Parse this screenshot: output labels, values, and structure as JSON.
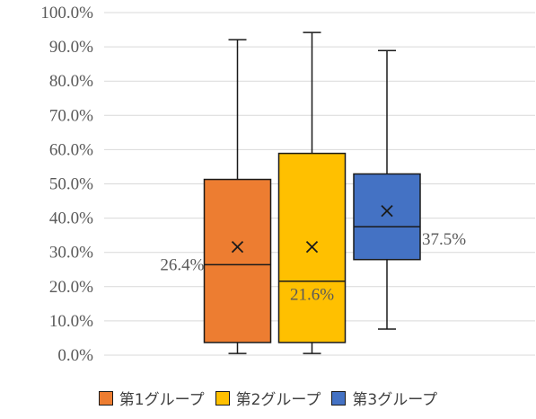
{
  "chart_data": {
    "type": "box",
    "ylim": [
      0,
      100
    ],
    "y_ticks": [
      "0.0%",
      "10.0%",
      "20.0%",
      "30.0%",
      "40.0%",
      "50.0%",
      "60.0%",
      "70.0%",
      "80.0%",
      "90.0%",
      "100.0%"
    ],
    "grid": true,
    "legend_position": "bottom",
    "series": [
      {
        "name": "第1グループ",
        "color": "#ED7D31",
        "min": 0.5,
        "q1": 3.7,
        "median": 26.4,
        "q3": 51.3,
        "max": 92.1,
        "mean": 31.6,
        "median_label": "26.4%"
      },
      {
        "name": "第2グループ",
        "color": "#FFC000",
        "min": 0.5,
        "q1": 3.7,
        "median": 21.6,
        "q3": 58.9,
        "max": 94.2,
        "mean": 31.6,
        "median_label": "21.6%"
      },
      {
        "name": "第3グループ",
        "color": "#4472C4",
        "min": 7.6,
        "q1": 27.9,
        "median": 37.5,
        "q3": 52.9,
        "max": 88.9,
        "mean": 42.1,
        "median_label": "37.5%"
      }
    ]
  }
}
